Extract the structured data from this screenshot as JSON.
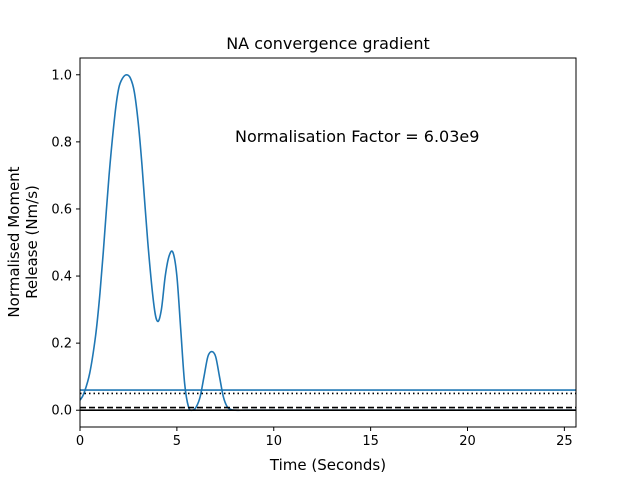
{
  "chart_data": {
    "type": "line",
    "title": "NA convergence gradient",
    "xlabel": "Time (Seconds)",
    "ylabel_lines": [
      "Normalised Moment",
      "Release (Nm/s)"
    ],
    "xlim": [
      0,
      25.6
    ],
    "ylim": [
      -0.05,
      1.05
    ],
    "xticks": [
      0,
      5,
      10,
      15,
      20,
      25
    ],
    "yticks": [
      0.0,
      0.2,
      0.4,
      0.6,
      0.8,
      1.0
    ],
    "xtick_labels": [
      "0",
      "5",
      "10",
      "15",
      "20",
      "25"
    ],
    "ytick_labels": [
      "0.0",
      "0.2",
      "0.4",
      "0.6",
      "0.8",
      "1.0"
    ],
    "grid": false,
    "annotation": "Normalisation Factor = 6.03e9",
    "colors": {
      "series": "#1f77b4",
      "reference": "#000000"
    },
    "series": [
      {
        "style": "solid",
        "color": "#1f77b4",
        "x": [
          0,
          0.2,
          0.5,
          0.8,
          1.0,
          1.2,
          1.5,
          1.8,
          2.0,
          2.2,
          2.4,
          2.6,
          2.8,
          3.0,
          3.2,
          3.5,
          3.8,
          4.0,
          4.2,
          4.4,
          4.6,
          4.8,
          5.0,
          5.2,
          5.4,
          5.6,
          5.8,
          6.0,
          6.2,
          6.4,
          6.6,
          6.8,
          7.0,
          7.2,
          7.4,
          7.6,
          7.8,
          8.0,
          8.5,
          9,
          10,
          12,
          15,
          20,
          25.6
        ],
        "y": [
          0.03,
          0.05,
          0.11,
          0.22,
          0.33,
          0.47,
          0.7,
          0.88,
          0.96,
          0.99,
          1.0,
          0.99,
          0.95,
          0.86,
          0.73,
          0.5,
          0.32,
          0.265,
          0.3,
          0.4,
          0.46,
          0.47,
          0.4,
          0.24,
          0.08,
          0.01,
          0.0,
          0.01,
          0.04,
          0.1,
          0.16,
          0.175,
          0.16,
          0.1,
          0.04,
          0.01,
          0.002,
          0.0,
          0.0,
          0.0,
          0.0,
          0.0,
          0.0,
          0.0,
          0.0
        ]
      },
      {
        "style": "solid",
        "color": "#1f77b4",
        "x": [
          0,
          25.6
        ],
        "y": [
          0.06,
          0.06
        ]
      },
      {
        "style": "dotted",
        "color": "#000000",
        "x": [
          0,
          25.6
        ],
        "y": [
          0.05,
          0.05
        ]
      },
      {
        "style": "dashed",
        "color": "#000000",
        "x": [
          0,
          25.6
        ],
        "y": [
          0.008,
          0.008
        ]
      },
      {
        "style": "solid",
        "color": "#000000",
        "x": [
          0,
          25.6
        ],
        "y": [
          0.0,
          0.0
        ]
      }
    ]
  }
}
